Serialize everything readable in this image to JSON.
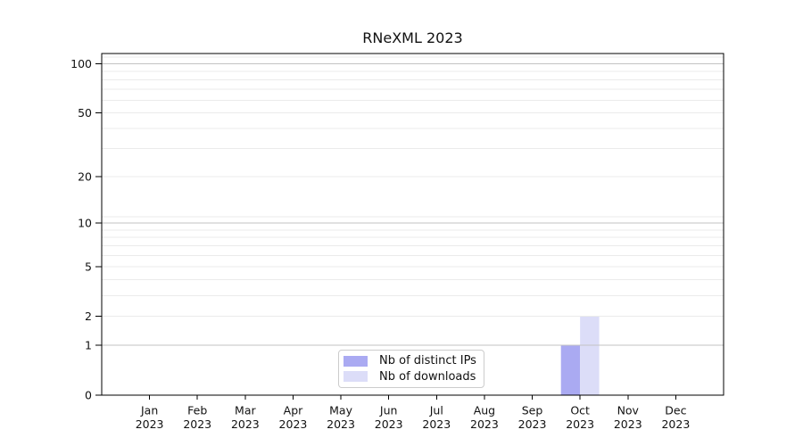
{
  "chart_data": {
    "type": "bar",
    "title": "RNeXML 2023",
    "categories": [
      "Jan",
      "Feb",
      "Mar",
      "Apr",
      "May",
      "Jun",
      "Jul",
      "Aug",
      "Sep",
      "Oct",
      "Nov",
      "Dec"
    ],
    "category_year": "2023",
    "series": [
      {
        "name": "Nb of distinct IPs",
        "color": "#aaaaf2",
        "values": [
          0,
          0,
          0,
          0,
          0,
          0,
          0,
          0,
          0,
          1,
          0,
          0
        ]
      },
      {
        "name": "Nb of downloads",
        "color": "#dcddf8",
        "values": [
          0,
          0,
          0,
          0,
          0,
          0,
          0,
          0,
          0,
          2,
          0,
          0
        ]
      }
    ],
    "y_axis": {
      "scale": "log1p",
      "tick_labels": [
        "100",
        "50",
        "20",
        "10",
        "5",
        "2",
        "1",
        "0"
      ],
      "tick_values": [
        100,
        50,
        20,
        10,
        5,
        2,
        1,
        0
      ],
      "minor_gridlines": [
        110,
        90,
        80,
        70,
        60,
        40,
        30,
        11,
        9,
        8,
        7,
        6,
        4,
        3
      ],
      "range": [
        0,
        116
      ]
    },
    "grid": true,
    "legend_position": "lower center"
  },
  "colors": {
    "background": "#ffffff",
    "axis": "#000000",
    "text": "#111111",
    "major_grid": "#c3c3c3",
    "minor_grid": "#ebebeb"
  }
}
